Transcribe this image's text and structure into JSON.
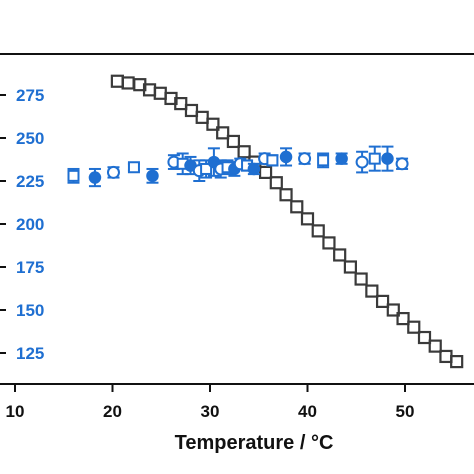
{
  "chart_data": {
    "type": "scatter",
    "xlabel": "Temperature / °C",
    "ylabel": "",
    "xlim": [
      10,
      57
    ],
    "ylim": [
      112,
      290
    ],
    "x_ticks": [
      "10",
      "20",
      "30",
      "40",
      "50"
    ],
    "y_ticks": [
      "125",
      "150",
      "175",
      "200",
      "225",
      "250",
      "275"
    ],
    "colors": {
      "square_series": "#3a3a3a",
      "blue_series": "#1f6fd1",
      "axis": "#111111"
    },
    "series": [
      {
        "marker": "square",
        "color": "#3a3a3a",
        "x": [
          20.5,
          21.6,
          22.8,
          23.8,
          24.9,
          26.0,
          27.0,
          28.1,
          29.2,
          30.3,
          31.3,
          32.4,
          33.5,
          34.6,
          35.7,
          36.8,
          37.8,
          38.9,
          40.0,
          41.1,
          42.2,
          43.3,
          44.4,
          45.5,
          46.6,
          47.7,
          48.8,
          49.8,
          50.9,
          52.0,
          53.1,
          54.2,
          55.3
        ],
        "y": [
          283,
          282,
          281,
          278,
          276,
          273,
          270,
          266,
          262,
          258,
          253,
          248,
          242,
          236,
          230,
          224,
          217,
          210,
          203,
          196,
          189,
          182,
          175,
          168,
          161,
          155,
          150,
          145,
          140,
          134,
          129,
          123,
          120
        ]
      },
      {
        "marker": "blue-mixed",
        "color": "#1f6fd1",
        "x": [
          16.0,
          18.2,
          20.1,
          22.2,
          24.1,
          26.3,
          27.2,
          28.0,
          28.9,
          29.6,
          30.4,
          31.1,
          31.8,
          32.5,
          33.1,
          33.8,
          34.5,
          35.6,
          36.4,
          37.8,
          39.7,
          41.6,
          43.5,
          45.6,
          46.9,
          48.2,
          49.7
        ],
        "y": [
          228,
          227,
          230,
          233,
          228,
          236,
          235,
          234,
          231,
          232,
          236,
          232,
          233,
          232,
          235,
          234,
          232,
          238,
          237,
          239,
          238,
          237,
          238,
          236,
          238,
          238,
          235
        ],
        "err": [
          4,
          5,
          3,
          2,
          4,
          4,
          6,
          5,
          6,
          5,
          8,
          5,
          4,
          4,
          3,
          3,
          3,
          3,
          3,
          5,
          3,
          4,
          3,
          6,
          7,
          7,
          3
        ]
      }
    ]
  }
}
